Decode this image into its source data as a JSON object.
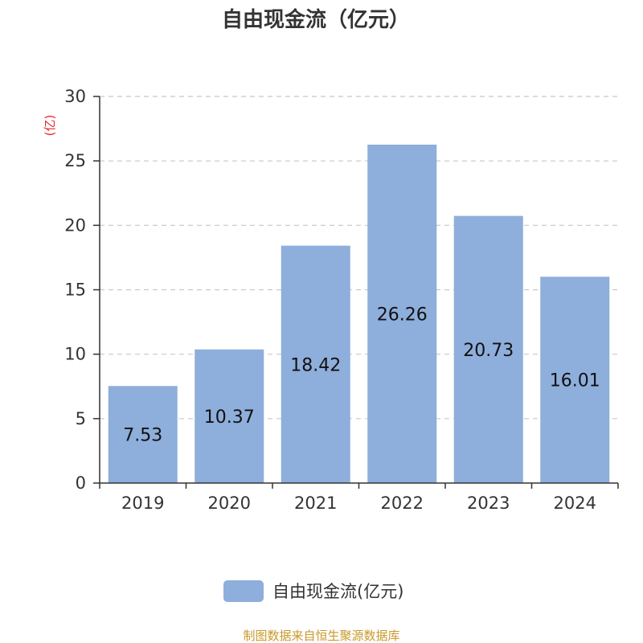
{
  "title": "自由现金流（亿元）",
  "unit_label": "(亿)",
  "legend_label": "自由现金流(亿元)",
  "source": "制图数据来自恒生聚源数据库",
  "colors": {
    "bar": "#8eaedb",
    "grid": "#c8c8c8",
    "axis": "#333333",
    "unit": "#e8242b",
    "source": "#c8992a"
  },
  "chart_data": {
    "type": "bar",
    "categories": [
      "2019",
      "2020",
      "2021",
      "2022",
      "2023",
      "2024"
    ],
    "series": [
      {
        "name": "自由现金流(亿元)",
        "values": [
          7.53,
          10.37,
          18.42,
          26.26,
          20.73,
          16.01
        ]
      }
    ],
    "data_labels": [
      "7.53",
      "10.37",
      "18.42",
      "26.26",
      "20.73",
      "16.01"
    ],
    "ylim": [
      0,
      30
    ],
    "yticks": [
      0,
      5,
      10,
      15,
      20,
      25,
      30
    ],
    "grid": true,
    "legend_position": "bottom-center"
  }
}
